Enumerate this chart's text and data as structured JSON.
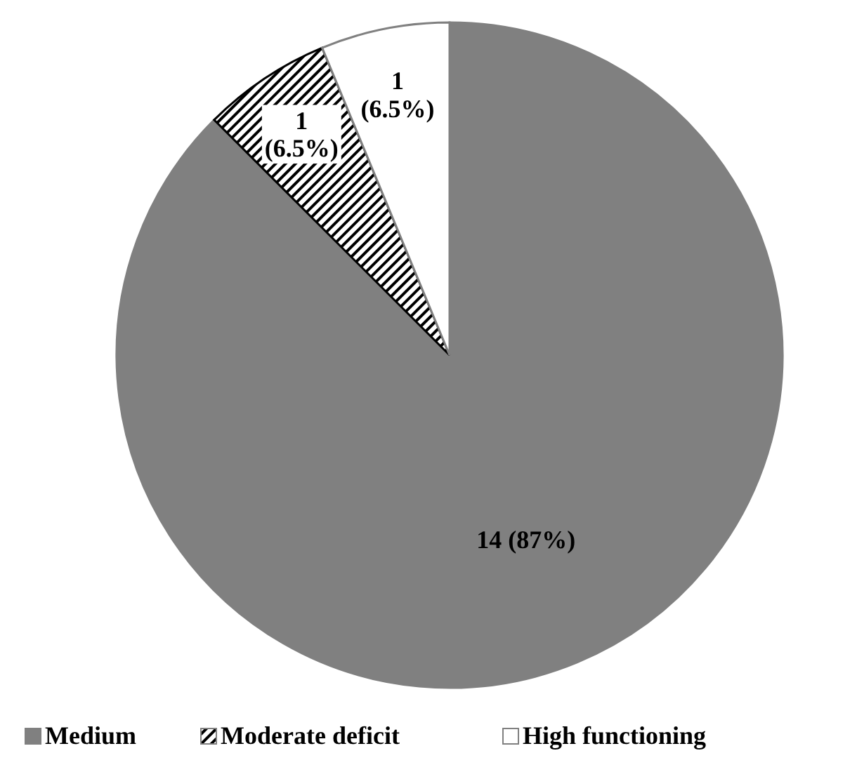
{
  "chart_data": {
    "type": "pie",
    "categories": [
      "Medium",
      "Moderate deficit",
      "High functioning"
    ],
    "values": [
      14,
      1,
      1
    ],
    "colors": [
      "#808080",
      "#000000",
      "#ffffff"
    ],
    "value_labels": [
      "14 (87%)",
      "1 (6.5%)",
      "1 (6.5%)"
    ],
    "legend": "bottom"
  }
}
